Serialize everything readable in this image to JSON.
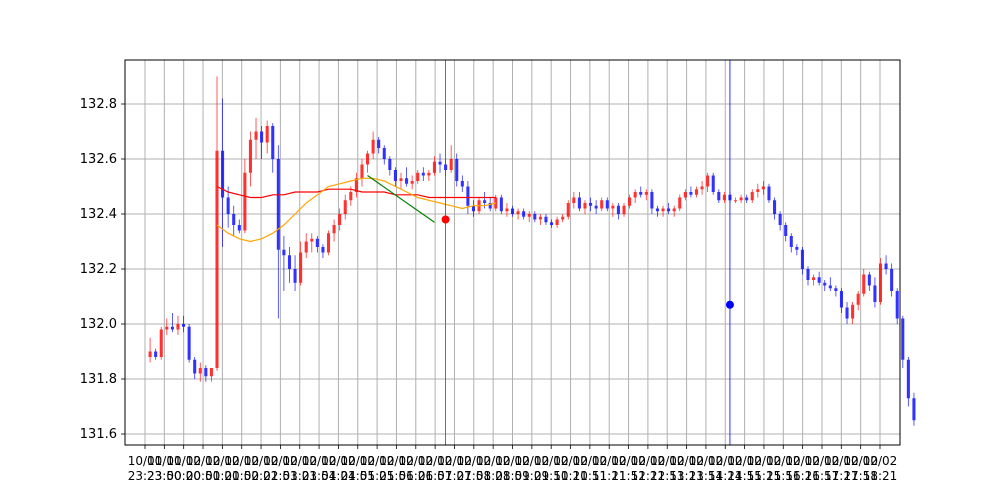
{
  "chart_data": {
    "type": "candlestick",
    "title": "",
    "xlabel": "",
    "ylabel": "",
    "ylim": [
      131.56,
      132.96
    ],
    "grid": true,
    "legend": "none",
    "colors": {
      "up": "#ff0000",
      "down": "#0000ff",
      "ma_fast": "#ffa500",
      "ma_slow": "#ff0000",
      "trend_line": "#008000",
      "sell_marker": "#ff0000",
      "buy_marker": "#0000ff",
      "grid": "#b0b0b0"
    },
    "y_ticks": [
      "131.6",
      "131.8",
      "132.0",
      "132.2",
      "132.4",
      "132.6",
      "132.8"
    ],
    "x_ticks": [
      {
        "line1": "10/01",
        "line2": "23:23"
      },
      {
        "line1": "10/01",
        "line2": "23:50"
      },
      {
        "line1": "10/02",
        "line2": "00:20"
      },
      {
        "line1": "10/02",
        "line2": "00:50"
      },
      {
        "line1": "10/02",
        "line2": "01:20"
      },
      {
        "line1": "10/02",
        "line2": "01:50"
      },
      {
        "line1": "10/02",
        "line2": "02:21"
      },
      {
        "line1": "10/02",
        "line2": "02:51"
      },
      {
        "line1": "10/02",
        "line2": "03:21"
      },
      {
        "line1": "10/02",
        "line2": "03:51"
      },
      {
        "line1": "10/02",
        "line2": "04:21"
      },
      {
        "line1": "10/02",
        "line2": "04:51"
      },
      {
        "line1": "10/02",
        "line2": "05:21"
      },
      {
        "line1": "10/02",
        "line2": "05:51"
      },
      {
        "line1": "10/02",
        "line2": "06:21"
      },
      {
        "line1": "10/02",
        "line2": "06:51"
      },
      {
        "line1": "10/02",
        "line2": "07:21"
      },
      {
        "line1": "10/02",
        "line2": "07:51"
      },
      {
        "line1": "10/02",
        "line2": "08:21"
      },
      {
        "line1": "10/02",
        "line2": "08:51"
      },
      {
        "line1": "10/02",
        "line2": "09:21"
      },
      {
        "line1": "10/02",
        "line2": "09:51"
      },
      {
        "line1": "10/02",
        "line2": "10:21"
      },
      {
        "line1": "10/02",
        "line2": "10:51"
      },
      {
        "line1": "10/02",
        "line2": "11:21"
      },
      {
        "line1": "10/02",
        "line2": "11:51"
      },
      {
        "line1": "10/02",
        "line2": "12:21"
      },
      {
        "line1": "10/02",
        "line2": "12:51"
      },
      {
        "line1": "10/02",
        "line2": "13:21"
      },
      {
        "line1": "10/02",
        "line2": "13:51"
      },
      {
        "line1": "10/02",
        "line2": "14:21"
      },
      {
        "line1": "10/02",
        "line2": "14:51"
      },
      {
        "line1": "10/02",
        "line2": "15:21"
      },
      {
        "line1": "10/02",
        "line2": "15:51"
      },
      {
        "line1": "10/02",
        "line2": "16:21"
      },
      {
        "line1": "10/02",
        "line2": "16:51"
      },
      {
        "line1": "10/02",
        "line2": "17:21"
      },
      {
        "line1": "10/02",
        "line2": "17:51"
      },
      {
        "line1": "10/02",
        "line2": "18:21"
      }
    ],
    "candles": [
      [
        131.88,
        131.95,
        131.86,
        131.9
      ],
      [
        131.9,
        131.91,
        131.87,
        131.88
      ],
      [
        131.88,
        131.99,
        131.87,
        131.98
      ],
      [
        131.98,
        132.02,
        131.96,
        131.99
      ],
      [
        131.99,
        132.04,
        131.97,
        131.98
      ],
      [
        131.98,
        132.03,
        131.96,
        132.0
      ],
      [
        132.0,
        132.03,
        131.97,
        131.99
      ],
      [
        131.99,
        132.0,
        131.86,
        131.87
      ],
      [
        131.87,
        131.88,
        131.8,
        131.82
      ],
      [
        131.82,
        131.86,
        131.79,
        131.84
      ],
      [
        131.84,
        131.85,
        131.79,
        131.81
      ],
      [
        131.81,
        131.84,
        131.79,
        131.84
      ],
      [
        131.84,
        132.9,
        131.83,
        132.63
      ],
      [
        132.63,
        132.82,
        132.28,
        132.46
      ],
      [
        132.46,
        132.5,
        132.35,
        132.4
      ],
      [
        132.4,
        132.43,
        132.32,
        132.36
      ],
      [
        132.36,
        132.38,
        132.33,
        132.34
      ],
      [
        132.34,
        132.6,
        132.33,
        132.55
      ],
      [
        132.55,
        132.7,
        132.5,
        132.67
      ],
      [
        132.67,
        132.75,
        132.6,
        132.7
      ],
      [
        132.7,
        132.72,
        132.6,
        132.66
      ],
      [
        132.66,
        132.74,
        132.62,
        132.72
      ],
      [
        132.72,
        132.73,
        132.55,
        132.6
      ],
      [
        132.6,
        132.65,
        132.02,
        132.27
      ],
      [
        132.27,
        132.32,
        132.12,
        132.25
      ],
      [
        132.25,
        132.28,
        132.15,
        132.2
      ],
      [
        132.2,
        132.25,
        132.12,
        132.15
      ],
      [
        132.15,
        132.3,
        132.14,
        132.26
      ],
      [
        132.26,
        132.33,
        132.24,
        132.3
      ],
      [
        132.3,
        132.33,
        132.26,
        132.31
      ],
      [
        132.31,
        132.32,
        132.26,
        132.28
      ],
      [
        132.28,
        132.29,
        132.24,
        132.26
      ],
      [
        132.26,
        132.34,
        132.25,
        132.33
      ],
      [
        132.33,
        132.38,
        132.3,
        132.36
      ],
      [
        132.36,
        132.42,
        132.34,
        132.4
      ],
      [
        132.4,
        132.47,
        132.38,
        132.45
      ],
      [
        132.45,
        132.5,
        132.43,
        132.48
      ],
      [
        132.48,
        132.55,
        132.46,
        132.53
      ],
      [
        132.53,
        132.6,
        132.5,
        132.58
      ],
      [
        132.58,
        132.63,
        132.55,
        132.62
      ],
      [
        132.62,
        132.7,
        132.6,
        132.67
      ],
      [
        132.67,
        132.68,
        132.62,
        132.64
      ],
      [
        132.64,
        132.65,
        132.58,
        132.6
      ],
      [
        132.6,
        132.61,
        132.54,
        132.56
      ],
      [
        132.56,
        132.57,
        132.5,
        132.52
      ],
      [
        132.52,
        132.55,
        132.49,
        132.53
      ],
      [
        132.53,
        132.57,
        132.5,
        132.51
      ],
      [
        132.51,
        132.54,
        132.49,
        132.52
      ],
      [
        132.52,
        132.56,
        132.51,
        132.55
      ],
      [
        132.55,
        132.57,
        132.52,
        132.54
      ],
      [
        132.54,
        132.56,
        132.52,
        132.55
      ],
      [
        132.55,
        132.61,
        132.54,
        132.59
      ],
      [
        132.59,
        132.62,
        132.55,
        132.58
      ],
      [
        132.58,
        132.6,
        132.54,
        132.56
      ],
      [
        132.56,
        132.65,
        132.55,
        132.6
      ],
      [
        132.6,
        132.62,
        132.5,
        132.52
      ],
      [
        132.52,
        132.54,
        132.48,
        132.5
      ],
      [
        132.5,
        132.52,
        132.4,
        132.43
      ],
      [
        132.43,
        132.45,
        132.39,
        132.41
      ],
      [
        132.41,
        132.46,
        132.4,
        132.45
      ],
      [
        132.45,
        132.48,
        132.42,
        132.44
      ],
      [
        132.44,
        132.46,
        132.41,
        132.42
      ],
      [
        132.42,
        132.47,
        132.41,
        132.46
      ],
      [
        132.46,
        132.47,
        132.4,
        132.41
      ],
      [
        132.41,
        132.44,
        132.39,
        132.42
      ],
      [
        132.42,
        132.43,
        132.39,
        132.4
      ],
      [
        132.4,
        132.42,
        132.38,
        132.41
      ],
      [
        132.41,
        132.42,
        132.38,
        132.39
      ],
      [
        132.39,
        132.41,
        132.37,
        132.4
      ],
      [
        132.4,
        132.41,
        132.37,
        132.38
      ],
      [
        132.38,
        132.4,
        132.36,
        132.39
      ],
      [
        132.39,
        132.4,
        132.36,
        132.37
      ],
      [
        132.37,
        132.38,
        132.35,
        132.36
      ],
      [
        132.36,
        132.39,
        132.35,
        132.38
      ],
      [
        132.38,
        132.4,
        132.37,
        132.39
      ],
      [
        132.39,
        132.45,
        132.38,
        132.44
      ],
      [
        132.44,
        132.48,
        132.42,
        132.46
      ],
      [
        132.46,
        132.48,
        132.41,
        132.42
      ],
      [
        132.42,
        132.45,
        132.4,
        132.44
      ],
      [
        132.44,
        132.46,
        132.41,
        132.43
      ],
      [
        132.43,
        132.45,
        132.4,
        132.42
      ],
      [
        132.42,
        132.46,
        132.41,
        132.45
      ],
      [
        132.45,
        132.46,
        132.41,
        132.42
      ],
      [
        132.42,
        132.44,
        132.39,
        132.43
      ],
      [
        132.43,
        132.44,
        132.38,
        132.4
      ],
      [
        132.4,
        132.44,
        132.39,
        132.43
      ],
      [
        132.43,
        132.47,
        132.42,
        132.46
      ],
      [
        132.46,
        132.49,
        132.44,
        132.48
      ],
      [
        132.48,
        132.5,
        132.46,
        132.47
      ],
      [
        132.47,
        132.49,
        132.45,
        132.48
      ],
      [
        132.48,
        132.49,
        132.4,
        132.42
      ],
      [
        132.42,
        132.43,
        132.39,
        132.41
      ],
      [
        132.41,
        132.43,
        132.39,
        132.42
      ],
      [
        132.42,
        132.44,
        132.4,
        132.41
      ],
      [
        132.41,
        132.43,
        132.39,
        132.42
      ],
      [
        132.42,
        132.47,
        132.41,
        132.46
      ],
      [
        132.46,
        132.49,
        132.45,
        132.48
      ],
      [
        132.48,
        132.5,
        132.46,
        132.47
      ],
      [
        132.47,
        132.5,
        132.46,
        132.49
      ],
      [
        132.49,
        132.52,
        132.47,
        132.5
      ],
      [
        132.5,
        132.55,
        132.48,
        132.54
      ],
      [
        132.54,
        132.55,
        132.47,
        132.48
      ],
      [
        132.48,
        132.49,
        132.44,
        132.45
      ],
      [
        132.45,
        132.48,
        132.44,
        132.47
      ],
      [
        132.47,
        132.48,
        132.44,
        132.45
      ],
      [
        132.45,
        132.46,
        132.44,
        132.45
      ],
      [
        132.45,
        132.47,
        132.44,
        132.46
      ],
      [
        132.46,
        132.47,
        132.44,
        132.45
      ],
      [
        132.45,
        132.49,
        132.44,
        132.48
      ],
      [
        132.48,
        132.51,
        132.46,
        132.49
      ],
      [
        132.49,
        132.52,
        132.47,
        132.5
      ],
      [
        132.5,
        132.51,
        132.44,
        132.45
      ],
      [
        132.45,
        132.46,
        132.38,
        132.4
      ],
      [
        132.4,
        132.41,
        132.34,
        132.36
      ],
      [
        132.36,
        132.37,
        132.3,
        132.32
      ],
      [
        132.32,
        132.33,
        132.26,
        132.28
      ],
      [
        132.28,
        132.29,
        132.25,
        132.27
      ],
      [
        132.27,
        132.28,
        132.18,
        132.2
      ],
      [
        132.2,
        132.21,
        132.14,
        132.16
      ],
      [
        132.16,
        132.18,
        132.14,
        132.17
      ],
      [
        132.17,
        132.19,
        132.14,
        132.15
      ],
      [
        132.15,
        132.16,
        132.12,
        132.14
      ],
      [
        132.14,
        132.17,
        132.12,
        132.13
      ],
      [
        132.13,
        132.14,
        132.1,
        132.12
      ],
      [
        132.12,
        132.13,
        132.04,
        132.06
      ],
      [
        132.06,
        132.08,
        132.0,
        132.02
      ],
      [
        132.02,
        132.08,
        132.0,
        132.07
      ],
      [
        132.07,
        132.12,
        132.05,
        132.11
      ],
      [
        132.11,
        132.2,
        132.1,
        132.18
      ],
      [
        132.18,
        132.19,
        132.12,
        132.14
      ],
      [
        132.14,
        132.17,
        132.06,
        132.08
      ],
      [
        132.08,
        132.24,
        132.07,
        132.22
      ],
      [
        132.22,
        132.25,
        132.18,
        132.2
      ],
      [
        132.2,
        132.22,
        132.1,
        132.12
      ],
      [
        132.12,
        132.13,
        132.0,
        132.02
      ],
      [
        132.02,
        132.03,
        131.84,
        131.87
      ],
      [
        131.87,
        131.88,
        131.7,
        131.73
      ],
      [
        131.73,
        131.75,
        131.63,
        131.65
      ]
    ],
    "ma_fast": [
      [
        12,
        132.36
      ],
      [
        14,
        132.33
      ],
      [
        16,
        132.31
      ],
      [
        18,
        132.3
      ],
      [
        20,
        132.31
      ],
      [
        22,
        132.33
      ],
      [
        24,
        132.36
      ],
      [
        26,
        132.4
      ],
      [
        28,
        132.44
      ],
      [
        30,
        132.47
      ],
      [
        32,
        132.5
      ],
      [
        34,
        132.51
      ],
      [
        36,
        132.52
      ],
      [
        38,
        132.53
      ],
      [
        40,
        132.53
      ],
      [
        42,
        132.52
      ],
      [
        44,
        132.5
      ],
      [
        46,
        132.48
      ],
      [
        48,
        132.46
      ],
      [
        50,
        132.45
      ],
      [
        52,
        132.44
      ],
      [
        54,
        132.43
      ],
      [
        56,
        132.42
      ],
      [
        58,
        132.43
      ],
      [
        60,
        132.43
      ],
      [
        62,
        132.44
      ]
    ],
    "ma_slow": [
      [
        12,
        132.5
      ],
      [
        14,
        132.48
      ],
      [
        16,
        132.47
      ],
      [
        18,
        132.46
      ],
      [
        20,
        132.46
      ],
      [
        22,
        132.47
      ],
      [
        24,
        132.47
      ],
      [
        26,
        132.48
      ],
      [
        28,
        132.48
      ],
      [
        30,
        132.48
      ],
      [
        32,
        132.49
      ],
      [
        34,
        132.49
      ],
      [
        36,
        132.49
      ],
      [
        38,
        132.48
      ],
      [
        40,
        132.48
      ],
      [
        42,
        132.48
      ],
      [
        44,
        132.47
      ],
      [
        46,
        132.47
      ],
      [
        48,
        132.47
      ],
      [
        50,
        132.46
      ],
      [
        52,
        132.46
      ],
      [
        54,
        132.46
      ],
      [
        56,
        132.46
      ],
      [
        58,
        132.46
      ],
      [
        60,
        132.46
      ],
      [
        62,
        132.46
      ]
    ],
    "trend_line": [
      [
        39,
        132.54
      ],
      [
        51,
        132.37
      ]
    ],
    "trades": [
      {
        "type": "sell",
        "x": 53,
        "y": 132.38
      },
      {
        "type": "buy",
        "x": 104,
        "y": 132.07
      }
    ],
    "x_range": [
      -4.5,
      134.5
    ]
  }
}
